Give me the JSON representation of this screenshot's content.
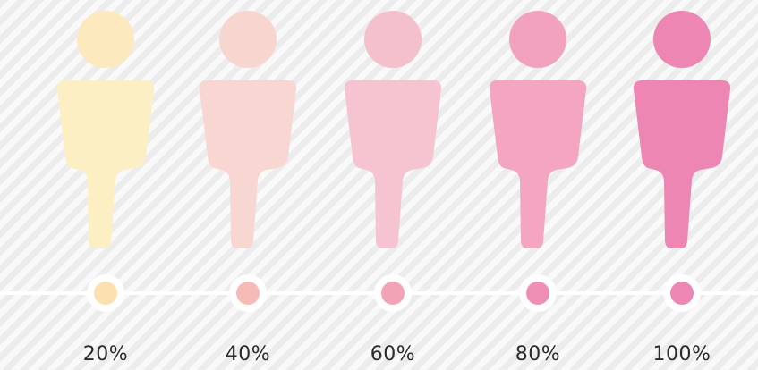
{
  "figures": [
    {
      "label": "20%",
      "level": 0.2,
      "color": "#FDEFC4",
      "head_color": "#FDE9BE",
      "dot_color": "#FCE0AF"
    },
    {
      "label": "40%",
      "level": 0.4,
      "color": "#F8D6D2",
      "head_color": "#F8D6D0",
      "dot_color": "#F6BBB5"
    },
    {
      "label": "60%",
      "level": 0.6,
      "color": "#F5C4D0",
      "head_color": "#F4C0CC",
      "dot_color": "#F2A3B6"
    },
    {
      "label": "80%",
      "level": 0.8,
      "color": "#F3A5C2",
      "head_color": "#F2A2BF",
      "dot_color": "#F08FB5"
    },
    {
      "label": "100%",
      "level": 1.0,
      "color": "#EE86B3",
      "head_color": "#EE86B3",
      "dot_color": "#EE86B3"
    }
  ],
  "line_color": "#ffffff"
}
